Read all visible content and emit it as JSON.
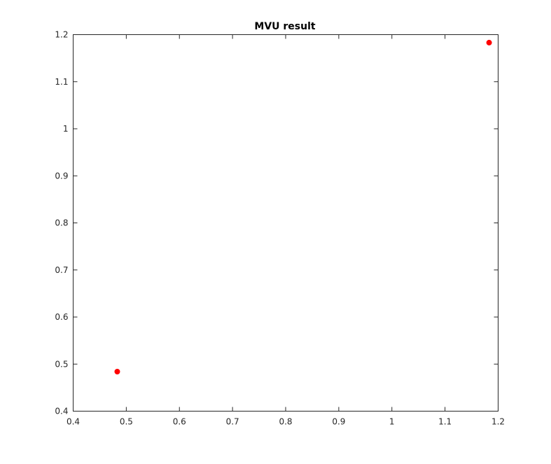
{
  "chart_data": {
    "type": "scatter",
    "title": "MVU result",
    "xlabel": "",
    "ylabel": "",
    "xlim": [
      0.4,
      1.2
    ],
    "ylim": [
      0.4,
      1.2
    ],
    "x_ticks": [
      0.4,
      0.5,
      0.6,
      0.7,
      0.8,
      0.9,
      1,
      1.1,
      1.2
    ],
    "y_ticks": [
      0.4,
      0.5,
      0.6,
      0.7,
      0.8,
      0.9,
      1,
      1.1,
      1.2
    ],
    "x_tick_labels": [
      "0.4",
      "0.5",
      "0.6",
      "0.7",
      "0.8",
      "0.9",
      "1",
      "1.1",
      "1.2"
    ],
    "y_tick_labels": [
      "0.4",
      "0.5",
      "0.6",
      "0.7",
      "0.8",
      "0.9",
      "1",
      "1.1",
      "1.2"
    ],
    "grid": false,
    "series": [
      {
        "color": "#ff0000",
        "marker": "circle-filled",
        "points": [
          {
            "x": 0.483,
            "y": 0.484
          },
          {
            "x": 1.183,
            "y": 1.183
          }
        ]
      }
    ]
  }
}
